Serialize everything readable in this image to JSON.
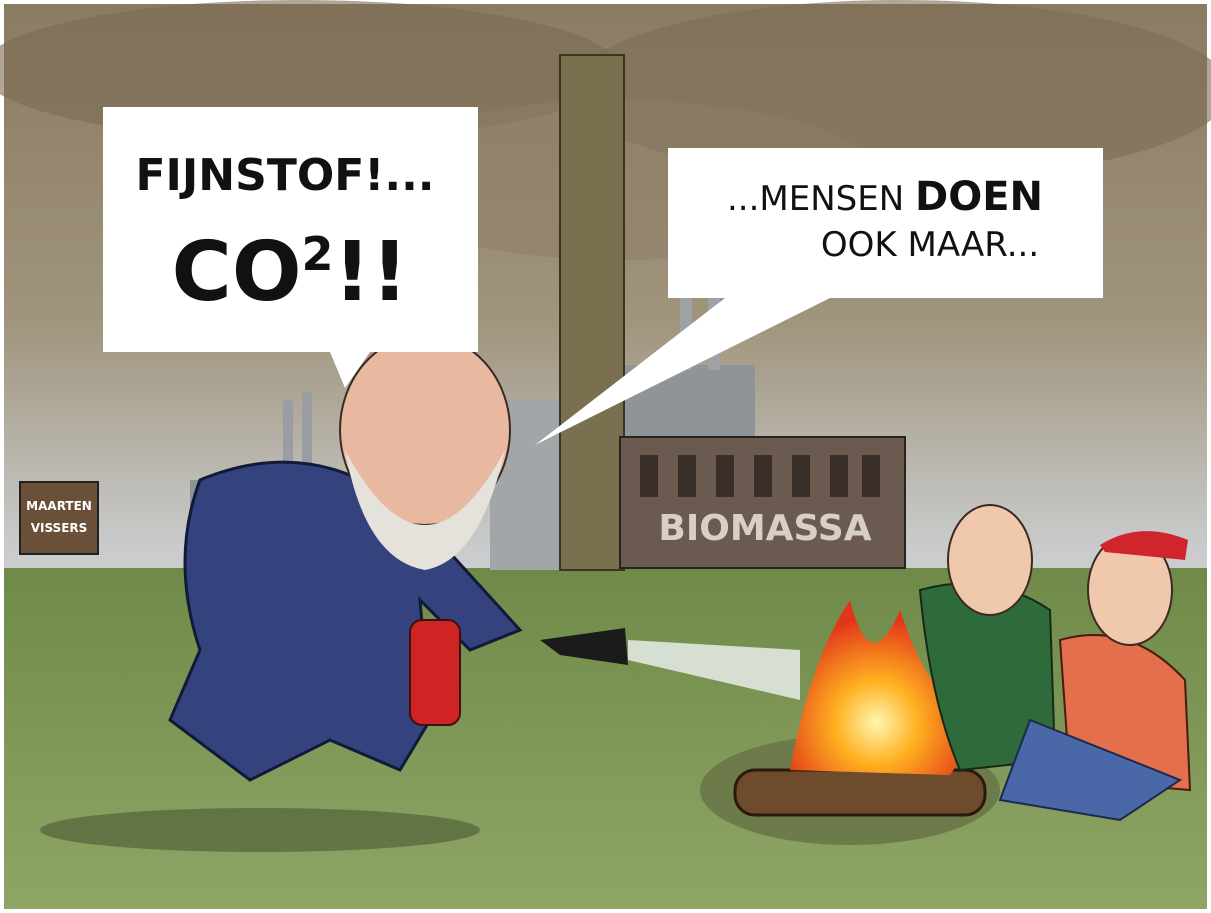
{
  "speech_left": {
    "line1": "FIJNSTOF!...",
    "line2": {
      "main": "CO",
      "superscript": "2",
      "end": "!!"
    }
  },
  "speech_right": {
    "line1": {
      "start": "...MENSEN ",
      "bold": "DOEN"
    },
    "line2": "OOK MAAR..."
  },
  "sign": "BIOMASSA",
  "signature": {
    "line1": "MAARTEN",
    "line2": "VISSERS"
  }
}
